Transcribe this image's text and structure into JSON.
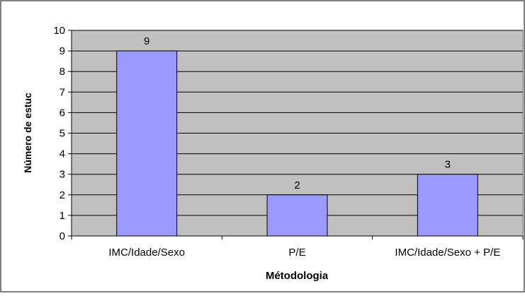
{
  "colors": {
    "plot_background": "#c0c0c0",
    "bar_fill": "#9999ff",
    "bar_stroke": "#000000",
    "gridline": "#000000",
    "chart_border": "#000000"
  },
  "chart_data": {
    "type": "bar",
    "categories": [
      "IMC/Idade/Sexo",
      "P/E",
      "IMC/Idade/Sexo + P/E"
    ],
    "values": [
      9,
      2,
      3
    ],
    "data_labels": [
      "9",
      "2",
      "3"
    ],
    "title": "",
    "xlabel": "Métodologia",
    "ylabel": "Número de estuc",
    "ylim": [
      0,
      10
    ],
    "yticks": [
      "0",
      "1",
      "2",
      "3",
      "4",
      "5",
      "6",
      "7",
      "8",
      "9",
      "10"
    ],
    "grid": true,
    "legend": "none"
  }
}
